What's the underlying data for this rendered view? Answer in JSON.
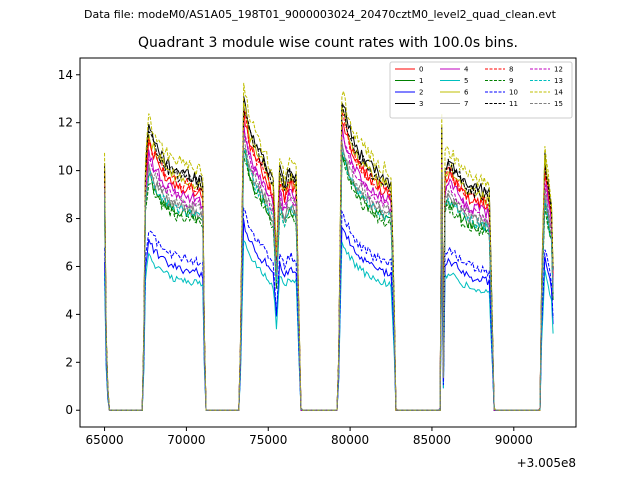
{
  "figure": {
    "suptitle": "Data file: modeM0/AS1A05_198T01_9000003024_20470cztM0_level2_quad_clean.evt"
  },
  "chart_data": {
    "type": "line",
    "title": "Quadrant 3 module wise count rates with 100.0s bins.",
    "xlabel": "",
    "ylabel": "",
    "x_offset_label": "+3.005e8",
    "xlim": [
      63500,
      93800
    ],
    "ylim": [
      -0.7,
      14.7
    ],
    "xticks": [
      65000,
      70000,
      75000,
      80000,
      85000,
      90000
    ],
    "xtick_labels": [
      "65000",
      "70000",
      "75000",
      "80000",
      "85000",
      "90000"
    ],
    "yticks": [
      0,
      2,
      4,
      6,
      8,
      10,
      12,
      14
    ],
    "ytick_labels": [
      "0",
      "2",
      "4",
      "6",
      "8",
      "10",
      "12",
      "14"
    ],
    "grid": false,
    "legend_location": "upper right",
    "legend_columns": 4,
    "segments": [
      [
        64950,
        65250
      ],
      [
        67400,
        71100
      ],
      [
        73300,
        77000
      ],
      [
        79300,
        82800
      ],
      [
        85500,
        88800
      ],
      [
        91600,
        92400
      ]
    ],
    "series": [
      {
        "name": "0",
        "color": "#ff0000",
        "dash": "solid",
        "scale": 1.0,
        "values": []
      },
      {
        "name": "1",
        "color": "#008000",
        "dash": "solid",
        "scale": 0.88,
        "values": []
      },
      {
        "name": "2",
        "color": "#0000ff",
        "dash": "solid",
        "scale": 0.63,
        "values": []
      },
      {
        "name": "3",
        "color": "#000000",
        "dash": "solid",
        "scale": 1.06,
        "values": []
      },
      {
        "name": "4",
        "color": "#bf00bf",
        "dash": "solid",
        "scale": 0.96,
        "values": []
      },
      {
        "name": "5",
        "color": "#00bfbf",
        "dash": "solid",
        "scale": 0.58,
        "values": []
      },
      {
        "name": "6",
        "color": "#bfbf00",
        "dash": "solid",
        "scale": 1.03,
        "values": []
      },
      {
        "name": "7",
        "color": "#808080",
        "dash": "solid",
        "scale": 0.9,
        "values": []
      },
      {
        "name": "8",
        "color": "#ff0000",
        "dash": "dashed",
        "scale": 1.01,
        "values": []
      },
      {
        "name": "9",
        "color": "#008000",
        "dash": "dashed",
        "scale": 0.86,
        "values": []
      },
      {
        "name": "10",
        "color": "#0000ff",
        "dash": "dashed",
        "scale": 0.68,
        "values": []
      },
      {
        "name": "11",
        "color": "#000000",
        "dash": "dashed",
        "scale": 1.04,
        "values": []
      },
      {
        "name": "12",
        "color": "#bf00bf",
        "dash": "dashed",
        "scale": 0.94,
        "values": []
      },
      {
        "name": "13",
        "color": "#00bfbf",
        "dash": "dashed",
        "scale": 0.89,
        "values": []
      },
      {
        "name": "14",
        "color": "#bfbf00",
        "dash": "dashed",
        "scale": 1.1,
        "values": []
      },
      {
        "name": "15",
        "color": "#808080",
        "dash": "dashed",
        "scale": 0.92,
        "values": []
      }
    ],
    "base_profile": {
      "x": [
        65000,
        65100,
        65200,
        65300,
        67300,
        67400,
        67500,
        67700,
        68000,
        68500,
        69000,
        69500,
        70000,
        70500,
        71000,
        71100,
        71200,
        73200,
        73300,
        73500,
        73800,
        74200,
        74800,
        75300,
        75500,
        75700,
        76000,
        76300,
        76700,
        76900,
        77000,
        79200,
        79300,
        79500,
        80000,
        80500,
        81000,
        81500,
        82000,
        82500,
        82700,
        82800,
        85500,
        85600,
        85700,
        85800,
        86000,
        86500,
        87000,
        87500,
        88000,
        88500,
        88700,
        88800,
        91600,
        91700,
        91900,
        92100,
        92300,
        92400
      ],
      "y": [
        9.8,
        3.0,
        0.8,
        0.0,
        0.0,
        3.0,
        9.6,
        11.2,
        10.6,
        10.0,
        9.6,
        9.4,
        9.3,
        9.2,
        9.0,
        3.0,
        0.0,
        0.0,
        2.5,
        12.4,
        11.3,
        10.5,
        9.8,
        8.9,
        6.0,
        9.6,
        8.8,
        9.5,
        9.2,
        3.0,
        0.0,
        0.0,
        2.0,
        12.2,
        11.0,
        10.2,
        9.8,
        9.4,
        9.2,
        9.0,
        4.0,
        0.0,
        0.0,
        11.0,
        1.5,
        9.6,
        9.9,
        9.5,
        9.0,
        8.8,
        8.7,
        8.5,
        3.0,
        0.0,
        0.0,
        5.0,
        10.0,
        9.0,
        8.0,
        5.5
      ]
    },
    "legend": [
      "0",
      "1",
      "2",
      "3",
      "4",
      "5",
      "6",
      "7",
      "8",
      "9",
      "10",
      "11",
      "12",
      "13",
      "14",
      "15"
    ]
  }
}
